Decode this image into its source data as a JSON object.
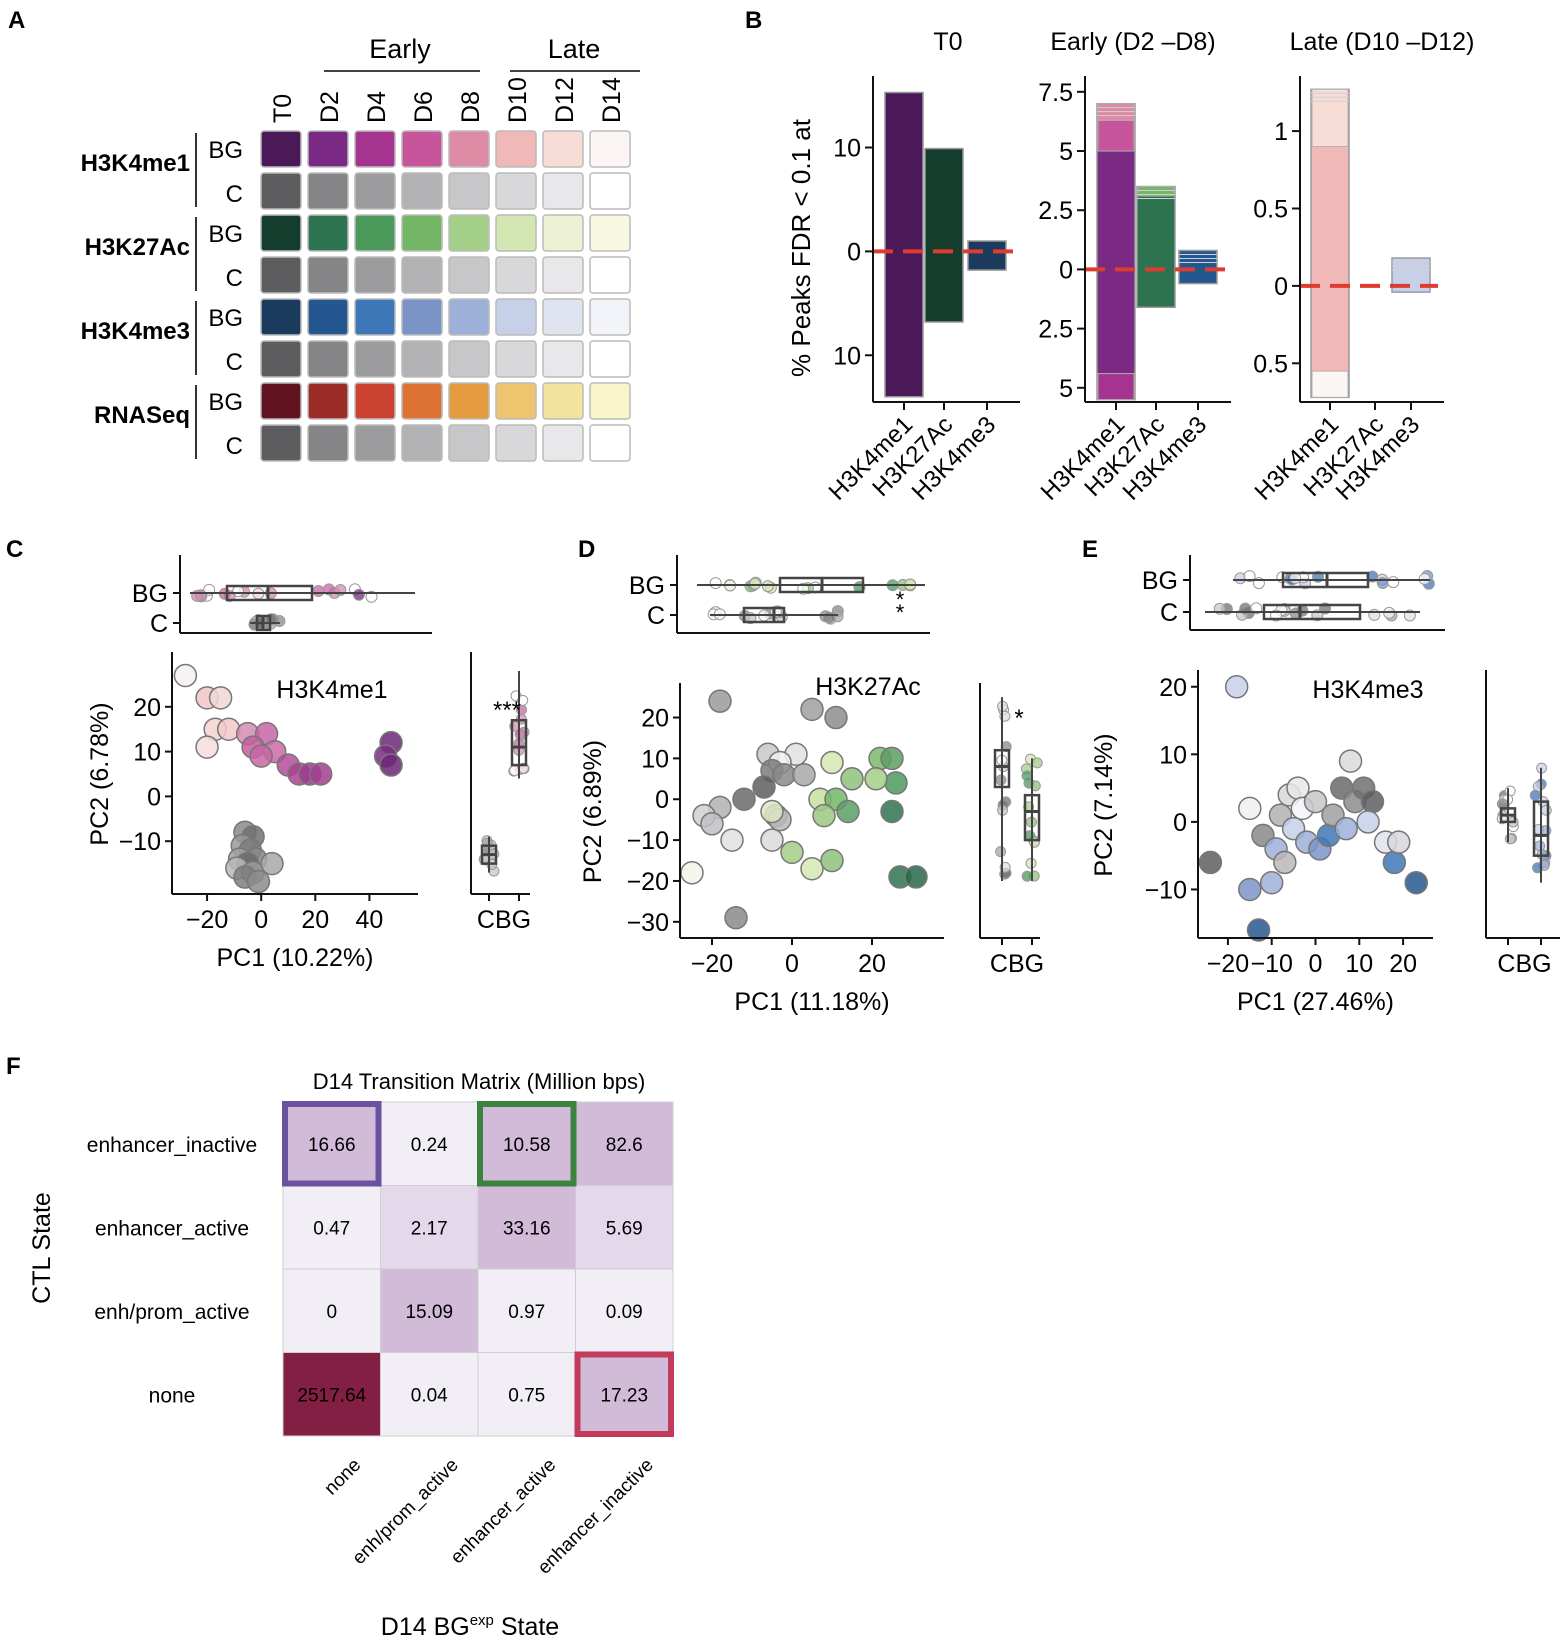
{
  "figure": {
    "panel_labels": [
      "A",
      "B",
      "C",
      "D",
      "E",
      "F"
    ]
  },
  "panel_a": {
    "group_labels": [
      "Early",
      "Late"
    ],
    "timepoints": [
      "T0",
      "D2",
      "D4",
      "D6",
      "D8",
      "D10",
      "D12",
      "D14"
    ],
    "row_types": [
      "BG",
      "C"
    ],
    "marks": [
      {
        "name": "H3K4me1",
        "bg_colors": [
          "#4b1858",
          "#7a2a82",
          "#a4348f",
          "#c6559c",
          "#df8aa5",
          "#f1b8b8",
          "#f8dcd6",
          "#fbf5f3"
        ]
      },
      {
        "name": "H3K27Ac",
        "bg_colors": [
          "#153d2d",
          "#2e7350",
          "#4b9a5c",
          "#73b766",
          "#a4cf88",
          "#d4e7b3",
          "#ecf2d3",
          "#f8f8e0"
        ]
      },
      {
        "name": "H3K4me3",
        "bg_colors": [
          "#1a3b5e",
          "#24578f",
          "#3d77b7",
          "#7b94c8",
          "#9db0d8",
          "#c6d0e8",
          "#e0e4f1",
          "#f3f4f9"
        ]
      },
      {
        "name": "RNASeq",
        "bg_colors": [
          "#621320",
          "#9c2b27",
          "#cc4232",
          "#de7235",
          "#e69a40",
          "#eec46f",
          "#f4e39c",
          "#f8f5c8"
        ]
      }
    ],
    "c_colors": [
      "#5d5d5f",
      "#858587",
      "#9c9c9e",
      "#b2b2b4",
      "#c7c7c9",
      "#d8d8da",
      "#e8e8ea",
      "#ffffff"
    ]
  },
  "panel_b": {
    "ylabel": "% Peaks FDR < 0.1 at",
    "subplots": [
      {
        "title": "T0",
        "tick_labels": [
          "10",
          "0",
          "10"
        ],
        "tick_values": [
          10,
          0,
          -10
        ],
        "ylim": [
          -14.5,
          16.5
        ],
        "bars": [
          {
            "category": "H3K4me1",
            "up": 15.3,
            "down": 14.0,
            "color": "#4b1858",
            "bands": []
          },
          {
            "category": "H3K27Ac",
            "up": 9.9,
            "down": 6.8,
            "color": "#153d2d",
            "bands": []
          },
          {
            "category": "H3K4me3",
            "up": 1.0,
            "down": 1.8,
            "color": "#1a3b5e",
            "bands": []
          }
        ]
      },
      {
        "title": "Early (D2 –D8)",
        "tick_labels": [
          "7.5",
          "5",
          "2.5",
          "0",
          "2.5",
          "5"
        ],
        "tick_values": [
          7.5,
          5,
          2.5,
          0,
          -2.5,
          -5
        ],
        "ylim": [
          -5.6,
          8.0
        ],
        "bars": [
          {
            "category": "H3K4me1",
            "up": 7.0,
            "down": 5.5,
            "color": "#7a2a82",
            "bands": [
              {
                "from": 5.0,
                "to": 6.3,
                "color": "#c6559c"
              },
              {
                "from": 6.3,
                "to": 7.0,
                "color": "#df8aa5"
              },
              {
                "from": -5.5,
                "to": -4.4,
                "color": "#a4348f"
              }
            ]
          },
          {
            "category": "H3K27Ac",
            "up": 3.5,
            "down": 1.6,
            "color": "#2e7350",
            "bands": [
              {
                "from": 3.1,
                "to": 3.5,
                "color": "#73b766"
              }
            ]
          },
          {
            "category": "H3K4me3",
            "up": 0.8,
            "down": 0.6,
            "color": "#24578f",
            "bands": []
          }
        ]
      },
      {
        "title": "Late (D10 –D12)",
        "tick_labels": [
          "1",
          "0.5",
          "0",
          "0.5"
        ],
        "tick_values": [
          1,
          0.5,
          0,
          -0.5
        ],
        "ylim": [
          -0.75,
          1.33
        ],
        "bars": [
          {
            "category": "H3K4me1",
            "up": 1.27,
            "down": 0.72,
            "color": "#f1b8b8",
            "bands": [
              {
                "from": 0.9,
                "to": 1.27,
                "color": "#f8dcd6"
              },
              {
                "from": -0.72,
                "to": -0.55,
                "color": "#fbf5f3"
              }
            ]
          },
          {
            "category": "H3K27Ac",
            "up": 0.0,
            "down": 0.0,
            "color": "#d4e7b3",
            "bands": []
          },
          {
            "category": "H3K4me3",
            "up": 0.18,
            "down": 0.04,
            "color": "#c6d0e8",
            "bands": []
          }
        ]
      }
    ]
  },
  "panel_c": {
    "title": "H3K4me1",
    "xlabel": "PC1 (10.22%)",
    "ylabel": "PC2 (6.78%)",
    "x_ticks": [
      "−20",
      "0",
      "20",
      "40"
    ],
    "y_ticks": [
      "20",
      "10",
      "0",
      "−10"
    ],
    "box_categories": [
      "BG",
      "C"
    ],
    "side_box_label": "CBG",
    "significance": "***"
  },
  "panel_d": {
    "title": "H3K27Ac",
    "xlabel": "PC1 (11.18%)",
    "ylabel": "PC2 (6.89%)",
    "x_ticks": [
      "−20",
      "0",
      "20"
    ],
    "y_ticks": [
      "20",
      "10",
      "0",
      "−10",
      "−20",
      "−30"
    ],
    "box_categories": [
      "BG",
      "C"
    ],
    "side_box_label": "CBG",
    "significance": "*",
    "top_significance": "*"
  },
  "panel_e": {
    "title": "H3K4me3",
    "xlabel": "PC1 (27.46%)",
    "ylabel": "PC2 (7.14%)",
    "x_ticks": [
      "−20",
      "−10",
      "0",
      "10",
      "20"
    ],
    "y_ticks": [
      "20",
      "10",
      "0",
      "−10"
    ],
    "box_categories": [
      "BG",
      "C"
    ],
    "side_box_label": "CBG"
  },
  "chart_data": [
    {
      "type": "table",
      "title": "D14 Transition Matrix (Million bps)",
      "xlabel_main": "D14 BG",
      "xlabel_sup": "exp",
      "xlabel_end": " State",
      "ylabel": "CTL State",
      "row_labels": [
        "enhancer_inactive",
        "enhancer_active",
        "enh/prom_active",
        "none"
      ],
      "col_labels": [
        "none",
        "enh/prom_active",
        "enhancer_active",
        "enhancer_inactive"
      ],
      "values": [
        [
          "16.66",
          "0.24",
          "10.58",
          "82.6"
        ],
        [
          "0.47",
          "2.17",
          "33.16",
          "5.69"
        ],
        [
          "0",
          "15.09",
          "0.97",
          "0.09"
        ],
        [
          "2517.64",
          "0.04",
          "0.75",
          "17.23"
        ]
      ],
      "highlights": [
        {
          "row": 0,
          "col": 0,
          "color": "#6b52a0"
        },
        {
          "row": 0,
          "col": 2,
          "color": "#3d8340"
        },
        {
          "row": 3,
          "col": 3,
          "color": "#c23b5c"
        }
      ]
    },
    {
      "type": "scatter",
      "title": "H3K4me1",
      "xlim": [
        -30,
        55
      ],
      "ylim": [
        -20,
        30
      ],
      "points": [
        [
          -28,
          27,
          "#f4f0f0"
        ],
        [
          -20,
          22,
          "#f1c6c6"
        ],
        [
          -15,
          22,
          "#f3d6d6"
        ],
        [
          -17,
          15,
          "#f5d4d4"
        ],
        [
          -12,
          15,
          "#f2c8c8"
        ],
        [
          -20,
          11,
          "#f7dcdc"
        ],
        [
          -5,
          14,
          "#d58bb2"
        ],
        [
          2,
          14,
          "#c865a6"
        ],
        [
          -3,
          11,
          "#c45ca0"
        ],
        [
          5,
          10,
          "#cc6aa8"
        ],
        [
          0,
          9,
          "#c866a5"
        ],
        [
          10,
          7,
          "#b44d9a"
        ],
        [
          14,
          5,
          "#ac418f"
        ],
        [
          18,
          5,
          "#9e3a8c"
        ],
        [
          22,
          5,
          "#a23d8e"
        ],
        [
          48,
          12,
          "#6d2478"
        ],
        [
          46,
          9,
          "#7a2a82"
        ],
        [
          48,
          7,
          "#6d2478"
        ],
        [
          -6,
          -8,
          "#8a8a8c"
        ],
        [
          -3,
          -9,
          "#707072"
        ],
        [
          -7,
          -11,
          "#9a9a9c"
        ],
        [
          -4,
          -12,
          "#7c7c7e"
        ],
        [
          -8,
          -14,
          "#a0a0a2"
        ],
        [
          -2,
          -14,
          "#888888"
        ],
        [
          -5,
          -15,
          "#6a6a6c"
        ],
        [
          -9,
          -16,
          "#b8b8ba"
        ],
        [
          -3,
          -17,
          "#9a9a9c"
        ],
        [
          -6,
          -18,
          "#7e7e80"
        ],
        [
          4,
          -15,
          "#a8a8aa"
        ],
        [
          -1,
          -19,
          "#8c8c8e"
        ]
      ]
    },
    {
      "type": "scatter",
      "title": "H3K27Ac",
      "xlim": [
        -26,
        36
      ],
      "ylim": [
        -32,
        26
      ],
      "points": [
        [
          -18,
          24,
          "#9a9a9c"
        ],
        [
          5,
          22,
          "#a0a0a2"
        ],
        [
          11,
          20,
          "#8c8c8e"
        ],
        [
          1,
          11,
          "#e0e0e2"
        ],
        [
          -6,
          11,
          "#c8c8ca"
        ],
        [
          -3,
          9,
          "#f0f0f2"
        ],
        [
          -5,
          7,
          "#7c7c7e"
        ],
        [
          -2,
          6,
          "#8a8a8c"
        ],
        [
          3,
          6,
          "#a8a8aa"
        ],
        [
          -7,
          3,
          "#5e5e60"
        ],
        [
          -12,
          0,
          "#6a6a6c"
        ],
        [
          -18,
          -2,
          "#b0b0b2"
        ],
        [
          -22,
          -4,
          "#d0d0d2"
        ],
        [
          -20,
          -6,
          "#c0c0c2"
        ],
        [
          -4,
          -4,
          "#a8a8aa"
        ],
        [
          -5,
          -10,
          "#dadadc"
        ],
        [
          -15,
          -10,
          "#e0e0e2"
        ],
        [
          -25,
          -18,
          "#f2f4e8"
        ],
        [
          -14,
          -29,
          "#8a8a8c"
        ],
        [
          -3,
          -5,
          "#b8b8ba"
        ],
        [
          10,
          9,
          "#d4e7b3"
        ],
        [
          15,
          5,
          "#8fc27a"
        ],
        [
          22,
          10,
          "#7bb86e"
        ],
        [
          25,
          10,
          "#5ba063"
        ],
        [
          26,
          4,
          "#4b9a5c"
        ],
        [
          21,
          5,
          "#a4cf88"
        ],
        [
          7,
          0,
          "#c8e0a0"
        ],
        [
          11,
          0,
          "#73b766"
        ],
        [
          8,
          -4,
          "#9cc882"
        ],
        [
          14,
          -3,
          "#5a9e66"
        ],
        [
          25,
          -3,
          "#2e7350"
        ],
        [
          -5,
          -3,
          "#dbe8c4"
        ],
        [
          0,
          -13,
          "#a4cf88"
        ],
        [
          5,
          -17,
          "#d4e7b3"
        ],
        [
          10,
          -15,
          "#8fc27a"
        ],
        [
          27,
          -19,
          "#2e7350"
        ],
        [
          31,
          -19,
          "#266948"
        ]
      ]
    },
    {
      "type": "scatter",
      "title": "H3K4me3",
      "xlim": [
        -25,
        25
      ],
      "ylim": [
        -16,
        21
      ],
      "points": [
        [
          -24,
          -6,
          "#5e5e60"
        ],
        [
          -18,
          20,
          "#c6d0e8"
        ],
        [
          -15,
          2,
          "#f0f0f2"
        ],
        [
          -12,
          -2,
          "#8a8a8c"
        ],
        [
          -15,
          -10,
          "#7b94c8"
        ],
        [
          -13,
          -16,
          "#24578f"
        ],
        [
          -9,
          -4,
          "#9db0d8"
        ],
        [
          -8,
          1,
          "#b2b2b4"
        ],
        [
          -6,
          4,
          "#d8d8da"
        ],
        [
          -4,
          5,
          "#e8e8ea"
        ],
        [
          -5,
          -1,
          "#c6d0e8"
        ],
        [
          -3,
          2,
          "#f3f4f9"
        ],
        [
          -2,
          -3,
          "#9db0d8"
        ],
        [
          0,
          3,
          "#c7c7c9"
        ],
        [
          1,
          -4,
          "#7b94c8"
        ],
        [
          3,
          -2,
          "#3d77b7"
        ],
        [
          4,
          1,
          "#a0a0a2"
        ],
        [
          6,
          5,
          "#6a6a6c"
        ],
        [
          9,
          3,
          "#8c8c8e"
        ],
        [
          8,
          9,
          "#dadadc"
        ],
        [
          11,
          5,
          "#707072"
        ],
        [
          13,
          3,
          "#5e5e60"
        ],
        [
          12,
          0,
          "#c6d0e8"
        ],
        [
          16,
          -3,
          "#e0e4f1"
        ],
        [
          7,
          -1,
          "#9db0d8"
        ],
        [
          18,
          -6,
          "#3d77b7"
        ],
        [
          23,
          -9,
          "#24578f"
        ],
        [
          19,
          -3,
          "#d8d8da"
        ],
        [
          -10,
          -9,
          "#9db0d8"
        ],
        [
          -7,
          -6,
          "#b8b8ba"
        ]
      ]
    }
  ]
}
